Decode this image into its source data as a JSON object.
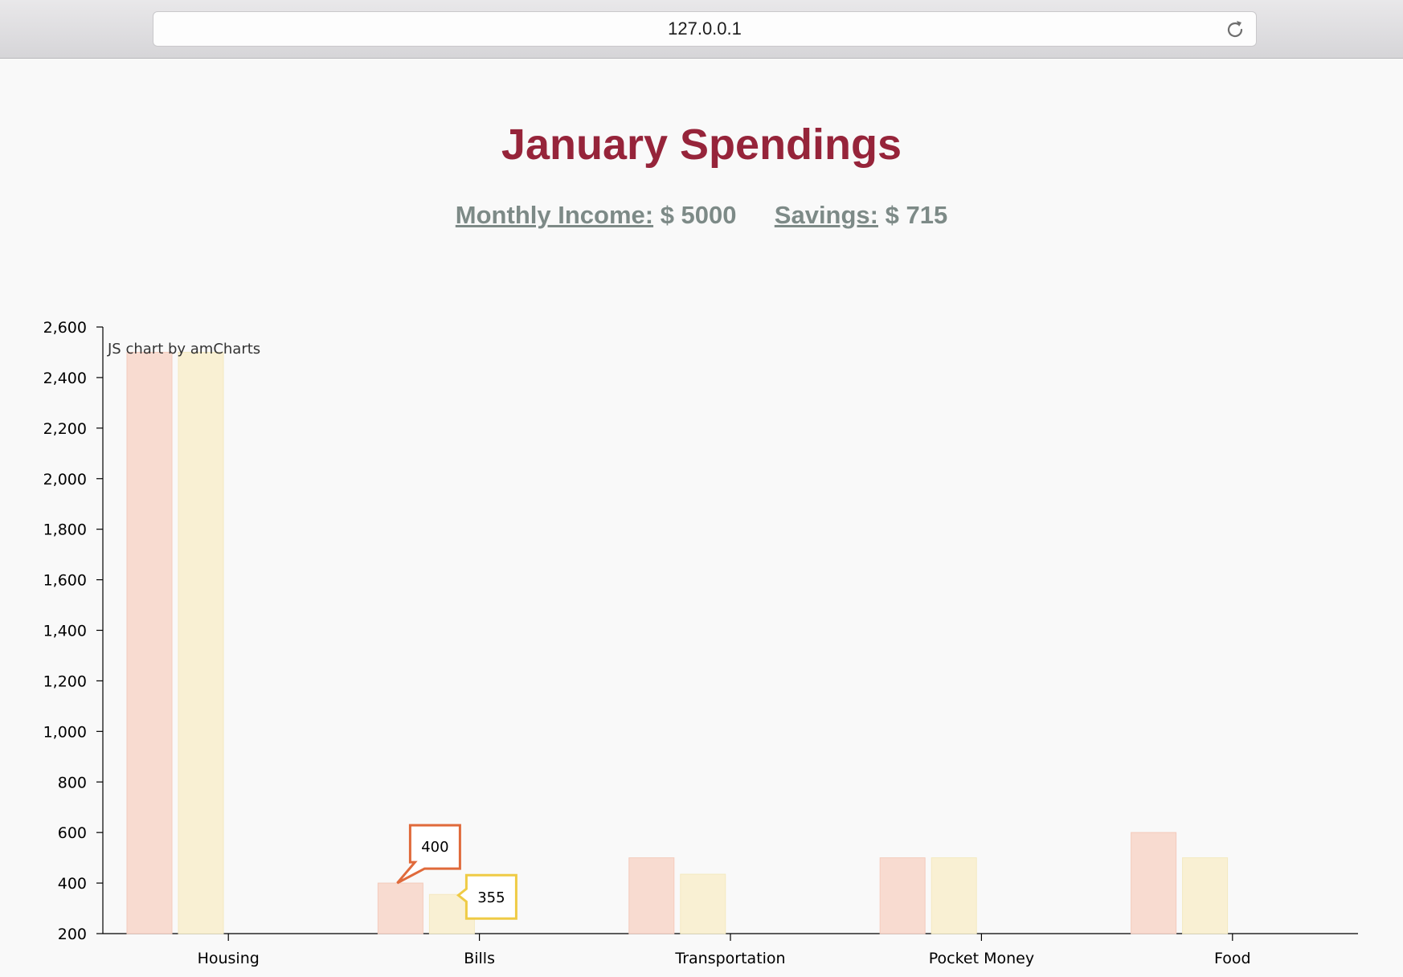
{
  "browser": {
    "address": "127.0.0.1"
  },
  "page": {
    "title": "January Spendings",
    "income_label": "Monthly Income:",
    "income_value": "$ 5000",
    "savings_label": "Savings:",
    "savings_value": "$ 715"
  },
  "chart_credit": "JS chart by amCharts",
  "colors": {
    "series1": "#f8dbd0",
    "series1_border": "#f4cbbd",
    "series2": "#f9f0d3",
    "series2_border": "#f4e9c0",
    "balloon1": "#e06a3b",
    "balloon2": "#efcb45",
    "title": "#96243a",
    "summary": "#7d8a87"
  },
  "chart_data": {
    "type": "bar",
    "categories": [
      "Housing",
      "Bills",
      "Transportation",
      "Pocket Money",
      "Food"
    ],
    "series": [
      {
        "values": [
          2500,
          400,
          500,
          500,
          600
        ]
      },
      {
        "values": [
          2500,
          355,
          435,
          500,
          500
        ]
      }
    ],
    "yticks": [
      "200",
      "400",
      "600",
      "800",
      "1,000",
      "1,200",
      "1,400",
      "1,600",
      "1,800",
      "2,000",
      "2,200",
      "2,400",
      "2,600"
    ],
    "ylim": [
      200,
      2600
    ],
    "grid": false,
    "balloons": [
      {
        "category": "Bills",
        "series": 0,
        "text": "400"
      },
      {
        "category": "Bills",
        "series": 1,
        "text": "355"
      }
    ]
  }
}
